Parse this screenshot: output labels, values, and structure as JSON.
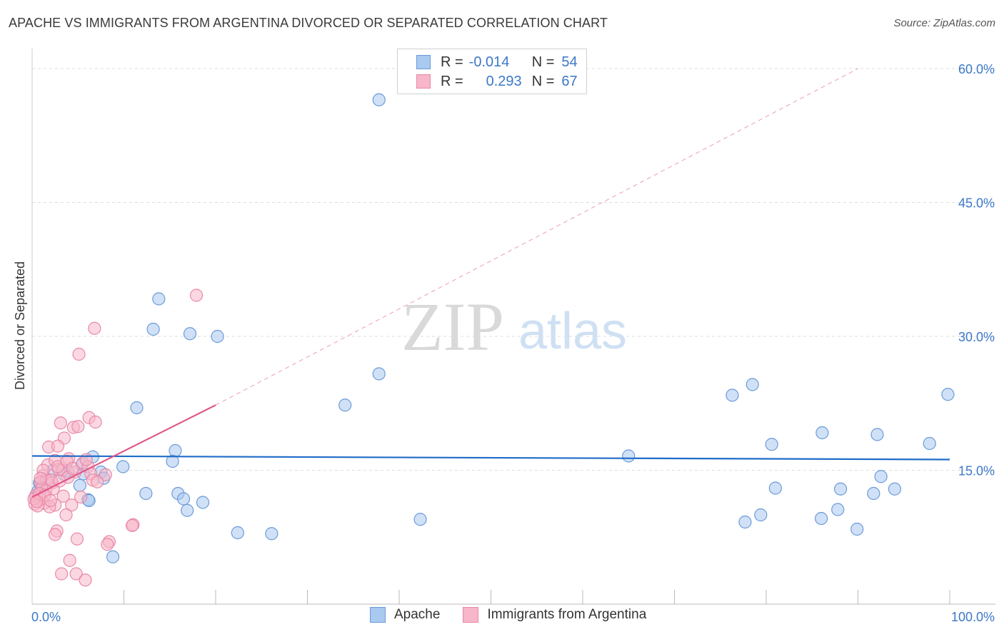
{
  "title": "APACHE VS IMMIGRANTS FROM ARGENTINA DIVORCED OR SEPARATED CORRELATION CHART",
  "source": "Source: ZipAtlas.com",
  "watermark": {
    "zip": "ZIP",
    "atlas": "atlas"
  },
  "legend": {
    "apache": {
      "r_label": "R =",
      "r_value": "-0.014",
      "n_label": "N =",
      "n_value": "54"
    },
    "argentina": {
      "r_label": "R =",
      "r_value": "0.293",
      "n_label": "N =",
      "n_value": "67"
    }
  },
  "bottom_legend": {
    "apache": "Apache",
    "argentina": "Immigrants from Argentina"
  },
  "colors": {
    "apache_fill": "#a9c9f0",
    "apache_stroke": "#6a9ad8",
    "apache_line": "#1f6cc8",
    "argentina_fill": "#f7b6c9",
    "argentina_stroke": "#e889a8",
    "argentina_line": "#e0588a",
    "axis_label": "#3c78c8"
  },
  "chart_data": {
    "type": "scatter",
    "title": "APACHE VS IMMIGRANTS FROM ARGENTINA DIVORCED OR SEPARATED CORRELATION CHART",
    "xlabel": "",
    "ylabel": "Divorced or Separated",
    "xlim": [
      0,
      100
    ],
    "ylim": [
      0,
      60
    ],
    "x_tick_labels": [
      "0.0%",
      "100.0%"
    ],
    "y_ticks": [
      15,
      30,
      45,
      60
    ],
    "y_tick_labels": [
      "15.0%",
      "30.0%",
      "45.0%",
      "60.0%"
    ],
    "grid": true,
    "series": [
      {
        "name": "Apache",
        "r": -0.014,
        "n": 54,
        "trend": {
          "x": [
            0,
            100
          ],
          "y": [
            16.6,
            16.2
          ],
          "dashed_to": null
        },
        "points": [
          [
            37.8,
            56.5
          ],
          [
            13.8,
            34.2
          ],
          [
            13.2,
            30.8
          ],
          [
            17.2,
            30.3
          ],
          [
            20.2,
            30.0
          ],
          [
            37.8,
            25.8
          ],
          [
            11.4,
            22.0
          ],
          [
            34.1,
            22.3
          ],
          [
            78.5,
            24.6
          ],
          [
            76.3,
            23.4
          ],
          [
            99.8,
            23.5
          ],
          [
            86.1,
            19.2
          ],
          [
            92.1,
            19.0
          ],
          [
            80.6,
            17.9
          ],
          [
            97.8,
            18.0
          ],
          [
            15.6,
            17.2
          ],
          [
            6.6,
            16.5
          ],
          [
            9.9,
            15.4
          ],
          [
            15.3,
            16.0
          ],
          [
            65.0,
            16.6
          ],
          [
            0.8,
            13.6
          ],
          [
            1.5,
            14.0
          ],
          [
            2.3,
            15.0
          ],
          [
            3.9,
            14.9
          ],
          [
            5.4,
            15.6
          ],
          [
            3.5,
            14.5
          ],
          [
            5.6,
            14.6
          ],
          [
            7.5,
            14.8
          ],
          [
            7.8,
            14.1
          ],
          [
            5.2,
            13.3
          ],
          [
            92.5,
            14.3
          ],
          [
            12.4,
            12.4
          ],
          [
            15.9,
            12.4
          ],
          [
            16.5,
            11.8
          ],
          [
            18.6,
            11.4
          ],
          [
            6.1,
            11.7
          ],
          [
            6.2,
            11.6
          ],
          [
            16.9,
            10.5
          ],
          [
            81.0,
            13.0
          ],
          [
            88.1,
            12.9
          ],
          [
            91.7,
            12.4
          ],
          [
            94.0,
            12.9
          ],
          [
            42.3,
            9.5
          ],
          [
            79.4,
            10.0
          ],
          [
            77.7,
            9.2
          ],
          [
            87.8,
            10.6
          ],
          [
            86.0,
            9.6
          ],
          [
            89.9,
            8.4
          ],
          [
            22.4,
            8.0
          ],
          [
            26.1,
            7.9
          ],
          [
            8.8,
            5.3
          ],
          [
            0.6,
            12.6
          ],
          [
            1.0,
            13.2
          ],
          [
            0.4,
            12.0
          ]
        ]
      },
      {
        "name": "Immigrants from Argentina",
        "r": 0.293,
        "n": 67,
        "trend": {
          "x": [
            0,
            20
          ],
          "y": [
            12.0,
            22.3
          ],
          "dashed_to": [
            90,
            60
          ]
        },
        "points": [
          [
            17.9,
            34.6
          ],
          [
            6.8,
            30.9
          ],
          [
            5.1,
            28.0
          ],
          [
            6.2,
            20.9
          ],
          [
            6.9,
            20.4
          ],
          [
            3.1,
            20.3
          ],
          [
            4.5,
            19.8
          ],
          [
            5.0,
            19.9
          ],
          [
            3.5,
            18.6
          ],
          [
            1.8,
            17.6
          ],
          [
            2.8,
            17.7
          ],
          [
            1.7,
            15.6
          ],
          [
            2.5,
            16.1
          ],
          [
            4.0,
            16.3
          ],
          [
            5.5,
            15.8
          ],
          [
            6.1,
            15.4
          ],
          [
            2.9,
            15.1
          ],
          [
            3.3,
            15.0
          ],
          [
            4.7,
            14.8
          ],
          [
            6.4,
            14.6
          ],
          [
            8.0,
            14.5
          ],
          [
            1.2,
            14.4
          ],
          [
            1.6,
            14.0
          ],
          [
            2.2,
            13.6
          ],
          [
            3.9,
            14.2
          ],
          [
            6.6,
            13.9
          ],
          [
            0.9,
            13.6
          ],
          [
            1.1,
            13.0
          ],
          [
            1.5,
            12.7
          ],
          [
            2.3,
            12.9
          ],
          [
            3.4,
            12.1
          ],
          [
            5.3,
            12.0
          ],
          [
            0.4,
            12.2
          ],
          [
            0.7,
            12.0
          ],
          [
            1.0,
            11.7
          ],
          [
            1.3,
            11.3
          ],
          [
            0.3,
            11.2
          ],
          [
            0.6,
            11.0
          ],
          [
            2.5,
            11.1
          ],
          [
            1.9,
            10.9
          ],
          [
            4.3,
            11.1
          ],
          [
            0.2,
            11.8
          ],
          [
            0.8,
            12.4
          ],
          [
            1.4,
            12.2
          ],
          [
            0.5,
            11.5
          ],
          [
            3.7,
            10.0
          ],
          [
            11.0,
            8.9
          ],
          [
            10.9,
            8.8
          ],
          [
            2.7,
            8.2
          ],
          [
            2.5,
            7.8
          ],
          [
            4.9,
            7.3
          ],
          [
            8.4,
            7.0
          ],
          [
            8.2,
            6.7
          ],
          [
            4.1,
            4.9
          ],
          [
            3.2,
            3.4
          ],
          [
            4.8,
            3.4
          ],
          [
            5.8,
            2.7
          ],
          [
            2.1,
            13.9
          ],
          [
            2.8,
            15.4
          ],
          [
            3.8,
            16.0
          ],
          [
            4.4,
            15.2
          ],
          [
            1.2,
            15.0
          ],
          [
            0.9,
            14.1
          ],
          [
            5.9,
            16.2
          ],
          [
            7.1,
            13.7
          ],
          [
            3.0,
            13.8
          ],
          [
            2.0,
            11.6
          ]
        ]
      }
    ]
  }
}
